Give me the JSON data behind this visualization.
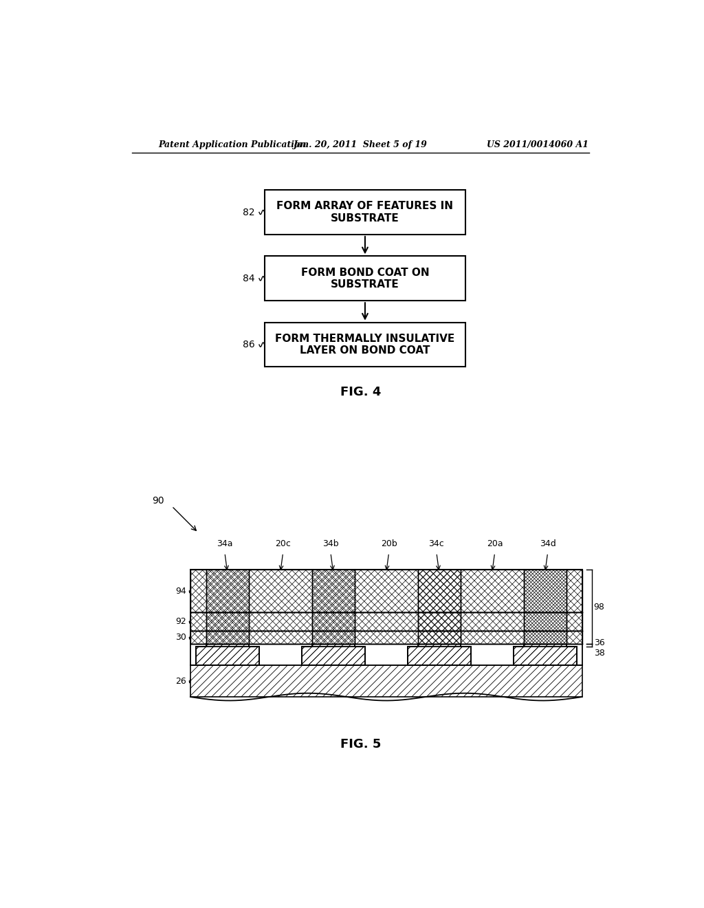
{
  "header_left": "Patent Application Publication",
  "header_center": "Jan. 20, 2011  Sheet 5 of 19",
  "header_right": "US 2011/0014060 A1",
  "fig4_label": "FIG. 4",
  "fig5_label": "FIG. 5",
  "box1_text": "FORM ARRAY OF FEATURES IN\nSUBSTRATE",
  "box2_text": "FORM BOND COAT ON\nSUBSTRATE",
  "box3_text": "FORM THERMALLY INSULATIVE\nLAYER ON BOND COAT",
  "label82": "82",
  "label84": "84",
  "label86": "86",
  "label90": "90",
  "label94": "94",
  "label92": "92",
  "label30": "30",
  "label26": "26",
  "label98": "98",
  "label36": "36",
  "label38": "38",
  "label34a": "34a",
  "label20c": "20c",
  "label34b": "34b",
  "label20b": "20b",
  "label34c": "34c",
  "label20a": "20a",
  "label34d": "34d",
  "background_color": "#ffffff"
}
